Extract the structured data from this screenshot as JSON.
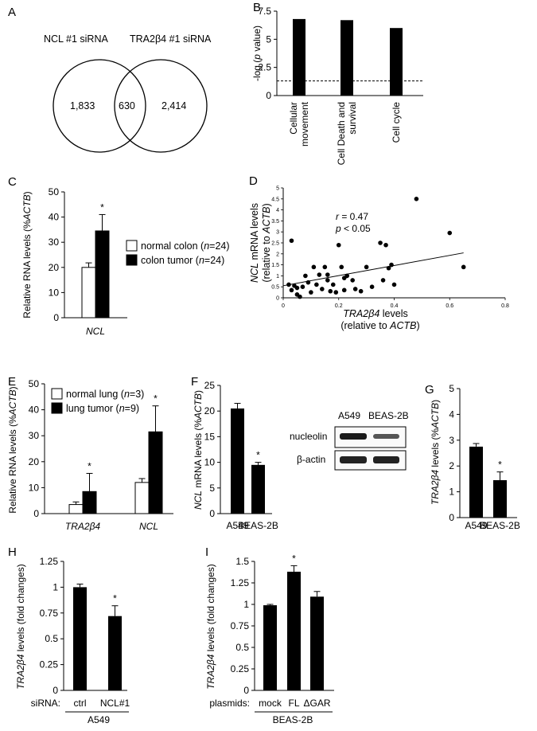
{
  "chart_data": [
    {
      "id": "A",
      "type": "venn",
      "panel": "A",
      "sets": [
        {
          "name": "NCL #1 siRNA",
          "only": "1,833"
        },
        {
          "name": "TRA2β4 #1 siRNA",
          "only": "2,414"
        }
      ],
      "overlap": "630"
    },
    {
      "id": "B",
      "type": "bar",
      "panel": "B",
      "ylabel": "-log (p value)",
      "ylabel_parts": [
        "-log (",
        "p",
        " value)"
      ],
      "ylim": [
        0,
        7.5
      ],
      "yticks": [
        "0",
        "2.5",
        "5",
        "7.5"
      ],
      "categories": [
        "Cellular movement",
        "Cell Death and survival",
        "Cell cycle"
      ],
      "category_lines": [
        [
          "Cellular",
          "movement"
        ],
        [
          "Cell Death and",
          "survival"
        ],
        [
          "Cell cycle"
        ]
      ],
      "values": [
        6.8,
        6.7,
        6.0
      ],
      "threshold": 1.3
    },
    {
      "id": "C",
      "type": "bar",
      "panel": "C",
      "ylabel": "Relative RNA levels (%ACTB)",
      "ylabel_parts": [
        "Relative RNA levels (%",
        "ACTB",
        ")"
      ],
      "ylim": [
        0,
        50
      ],
      "yticks": [
        "0",
        "10",
        "20",
        "30",
        "40",
        "50"
      ],
      "categories": [
        "NCL"
      ],
      "series": [
        {
          "name": "normal colon (n=24)",
          "name_parts": [
            "normal colon (",
            "n",
            "=24)"
          ],
          "color": "#ffffff",
          "values": [
            20
          ],
          "errors": [
            1.8
          ]
        },
        {
          "name": "colon tumor (n=24)",
          "name_parts": [
            "colon tumor (",
            "n",
            "=24)"
          ],
          "color": "#000000",
          "values": [
            34.5
          ],
          "errors": [
            6.5
          ]
        }
      ],
      "significance": [
        "",
        "*"
      ]
    },
    {
      "id": "D",
      "type": "scatter",
      "panel": "D",
      "annotation_r": "r = 0.47",
      "annotation_p": "p < 0.05",
      "xlabel_lines": [
        "TRA2β4 levels",
        "(relative to ACTB)"
      ],
      "ylabel_lines": [
        "NCL mRNA levels",
        "(relative to ACTB)"
      ],
      "xlim": [
        0,
        0.8
      ],
      "ylim": [
        0,
        5
      ],
      "xticks": [
        "0",
        "0.2",
        "0.4",
        "0.6",
        "0.8"
      ],
      "yticks": [
        "0",
        "0.5",
        "1",
        "1.5",
        "2",
        "2.5",
        "3",
        "3.5",
        "4",
        "4.5",
        "5"
      ],
      "points": [
        [
          0.02,
          0.6
        ],
        [
          0.03,
          0.35
        ],
        [
          0.04,
          0.55
        ],
        [
          0.05,
          0.15
        ],
        [
          0.05,
          0.45
        ],
        [
          0.06,
          0.05
        ],
        [
          0.07,
          0.5
        ],
        [
          0.08,
          1.0
        ],
        [
          0.09,
          0.7
        ],
        [
          0.1,
          0.25
        ],
        [
          0.11,
          1.4
        ],
        [
          0.12,
          0.6
        ],
        [
          0.13,
          1.05
        ],
        [
          0.14,
          0.4
        ],
        [
          0.15,
          1.4
        ],
        [
          0.16,
          0.8
        ],
        [
          0.17,
          0.3
        ],
        [
          0.18,
          0.6
        ],
        [
          0.19,
          0.25
        ],
        [
          0.2,
          2.4
        ],
        [
          0.21,
          1.4
        ],
        [
          0.22,
          0.9
        ],
        [
          0.23,
          1.0
        ],
        [
          0.25,
          0.8
        ],
        [
          0.26,
          0.4
        ],
        [
          0.28,
          0.3
        ],
        [
          0.3,
          1.4
        ],
        [
          0.32,
          0.5
        ],
        [
          0.35,
          2.5
        ],
        [
          0.36,
          0.8
        ],
        [
          0.37,
          2.4
        ],
        [
          0.38,
          1.35
        ],
        [
          0.39,
          1.5
        ],
        [
          0.4,
          0.6
        ],
        [
          0.48,
          4.5
        ],
        [
          0.6,
          2.95
        ],
        [
          0.65,
          1.4
        ],
        [
          0.03,
          2.6
        ],
        [
          0.16,
          1.05
        ],
        [
          0.22,
          0.35
        ]
      ],
      "fit": {
        "slope": 2.3,
        "intercept": 0.55
      }
    },
    {
      "id": "E",
      "type": "bar",
      "panel": "E",
      "ylabel": "Relative RNA levels (%ACTB)",
      "ylabel_parts": [
        "Relative RNA levels (%",
        "ACTB",
        ")"
      ],
      "ylim": [
        0,
        50
      ],
      "yticks": [
        "0",
        "10",
        "20",
        "30",
        "40",
        "50"
      ],
      "categories": [
        "TRA2β4",
        "NCL"
      ],
      "series": [
        {
          "name": "normal lung (n=3)",
          "name_parts": [
            "normal lung (",
            "n",
            "=3)"
          ],
          "color": "#ffffff",
          "values": [
            3.5,
            12
          ],
          "errors": [
            1.0,
            1.5
          ]
        },
        {
          "name": "lung tumor (n=9)",
          "name_parts": [
            "lung tumor (",
            "n",
            "=9)"
          ],
          "color": "#000000",
          "values": [
            8.5,
            31.5
          ],
          "errors": [
            7.0,
            10.0
          ]
        }
      ],
      "significance": [
        "*",
        "*"
      ]
    },
    {
      "id": "F",
      "type": "bar",
      "panel": "F",
      "ylabel": "NCL mRNA levels (%ACTB)",
      "ylabel_parts": [
        "NCL",
        " mRNA levels (%",
        "ACTB",
        ")"
      ],
      "ylim": [
        0,
        25
      ],
      "yticks": [
        "0",
        "5",
        "10",
        "15",
        "20",
        "25"
      ],
      "categories": [
        "A549",
        "BEAS-2B"
      ],
      "values": [
        20.5,
        9.5
      ],
      "errors": [
        1.0,
        0.5
      ],
      "significance": [
        "",
        "*"
      ],
      "blot": {
        "lanes": [
          "A549",
          "BEAS-2B"
        ],
        "rows": [
          "nucleolin",
          "β-actin"
        ]
      }
    },
    {
      "id": "G",
      "type": "bar",
      "panel": "G",
      "ylabel": "TRA2β4 levels (%ACTB)",
      "ylabel_parts": [
        "TRA2β4",
        " levels (%",
        "ACTB",
        ")"
      ],
      "ylim": [
        0,
        5
      ],
      "yticks": [
        "0",
        "1",
        "2",
        "3",
        "4",
        "5"
      ],
      "categories": [
        "A549",
        "BEAS-2B"
      ],
      "values": [
        2.75,
        1.45
      ],
      "errors": [
        0.12,
        0.32
      ],
      "significance": [
        "",
        "*"
      ]
    },
    {
      "id": "H",
      "type": "bar",
      "panel": "H",
      "ylabel": "TRA2β4 levels (fold changes)",
      "ylabel_parts": [
        "TRA2β4",
        " levels (fold changes)"
      ],
      "ylim": [
        0,
        1.25
      ],
      "yticks": [
        "0",
        "0.25",
        "0.5",
        "0.75",
        "1",
        "1.25"
      ],
      "categories": [
        "ctrl",
        "NCL#1"
      ],
      "values": [
        1.0,
        0.72
      ],
      "errors": [
        0.03,
        0.1
      ],
      "significance": [
        "",
        "*"
      ],
      "row_label": "siRNA:",
      "group_label": "A549"
    },
    {
      "id": "I",
      "type": "bar",
      "panel": "I",
      "ylabel": "TRA2β4 levels (fold changes)",
      "ylabel_parts": [
        "TRA2β4",
        " levels (fold changes)"
      ],
      "ylim": [
        0,
        1.5
      ],
      "yticks": [
        "0",
        "0.25",
        "0.5",
        "0.75",
        "1",
        "1.25",
        "1.5"
      ],
      "categories": [
        "mock",
        "FL",
        "ΔGAR"
      ],
      "values": [
        0.99,
        1.38,
        1.09
      ],
      "errors": [
        0.01,
        0.07,
        0.06
      ],
      "significance": [
        "",
        "*",
        ""
      ],
      "row_label": "plasmids:",
      "group_label": "BEAS-2B"
    }
  ]
}
